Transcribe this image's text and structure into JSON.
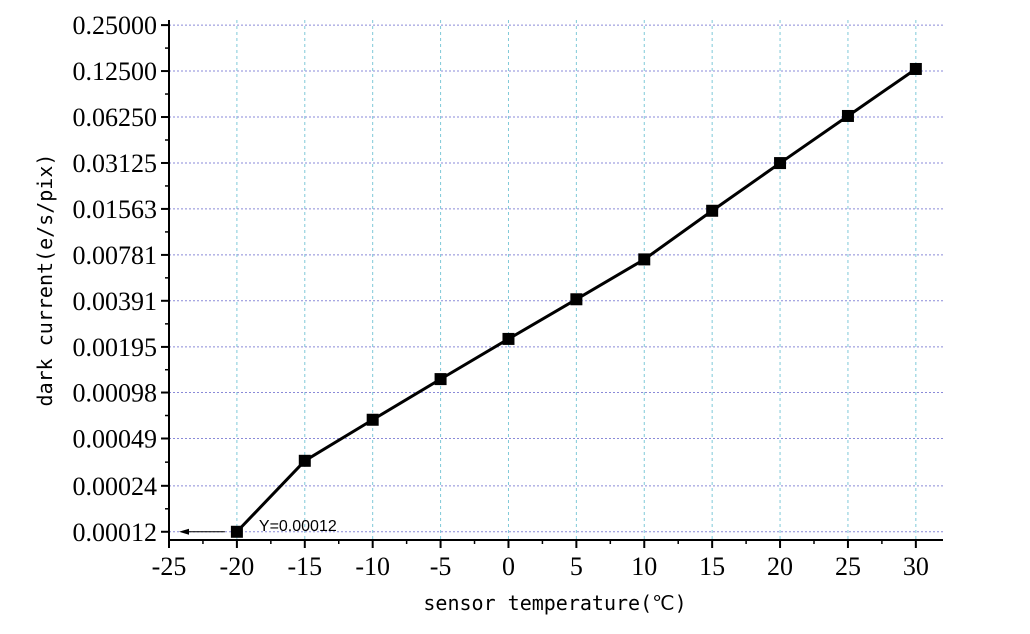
{
  "chart_data": {
    "type": "line",
    "title": "",
    "xlabel": "sensor temperature(℃)",
    "ylabel": "dark current(e/s/pix)",
    "xlim": [
      -25,
      32
    ],
    "x_ticks": [
      -25,
      -20,
      -15,
      -10,
      -5,
      0,
      5,
      10,
      15,
      20,
      25,
      30
    ],
    "x_tick_labels": [
      "-25",
      "-20",
      "-15",
      "-10",
      "-5",
      "0",
      "5",
      "10",
      "15",
      "20",
      "25",
      "30"
    ],
    "y_scale": "log2",
    "ylim": [
      0.000106,
      0.27
    ],
    "y_ticks": [
      0.00012,
      0.00024,
      0.00049,
      0.00098,
      0.00195,
      0.00391,
      0.00781,
      0.01563,
      0.03125,
      0.0625,
      0.125,
      0.25
    ],
    "y_tick_labels": [
      "0.00012",
      "0.00024",
      "0.00049",
      "0.00098",
      "0.00195",
      "0.00391",
      "0.00781",
      "0.01563",
      "0.03125",
      "0.06250",
      "0.12500",
      "0.25000"
    ],
    "grid": true,
    "series": [
      {
        "x": [
          -20,
          -15,
          -10,
          -5,
          0,
          5,
          10,
          15,
          20,
          25,
          30
        ],
        "y": [
          0.00012,
          0.00035,
          0.00065,
          0.0012,
          0.0022,
          0.004,
          0.0073,
          0.0152,
          0.0312,
          0.0635,
          0.129
        ],
        "marker": "square",
        "color": "#000000"
      }
    ],
    "annotation": {
      "text": "Y=0.00012",
      "x": -20,
      "y": 0.00012,
      "arrow": "left"
    }
  }
}
